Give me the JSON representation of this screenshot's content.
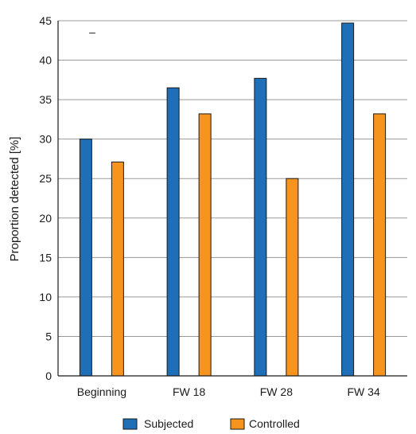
{
  "chart_data": {
    "type": "bar",
    "categories": [
      "Beginning",
      "FW 18",
      "FW 28",
      "FW 34"
    ],
    "series": [
      {
        "name": "Subjected",
        "values": [
          30.0,
          36.5,
          37.7,
          44.7
        ],
        "color": "#1f6fb8"
      },
      {
        "name": "Controlled",
        "values": [
          27.1,
          33.2,
          25.0,
          33.2
        ],
        "color": "#f7941d"
      }
    ],
    "title": "",
    "xlabel": "",
    "ylabel": "Proportion detected [%]",
    "ylim": [
      0,
      45
    ],
    "yticks": [
      0,
      5,
      10,
      15,
      20,
      25,
      30,
      35,
      40,
      45
    ],
    "grid": true,
    "legend_position": "bottom-center",
    "annotation": "–",
    "gridline_color": "#9a9a9a",
    "bar_edge_color": "#1a1a1a"
  }
}
